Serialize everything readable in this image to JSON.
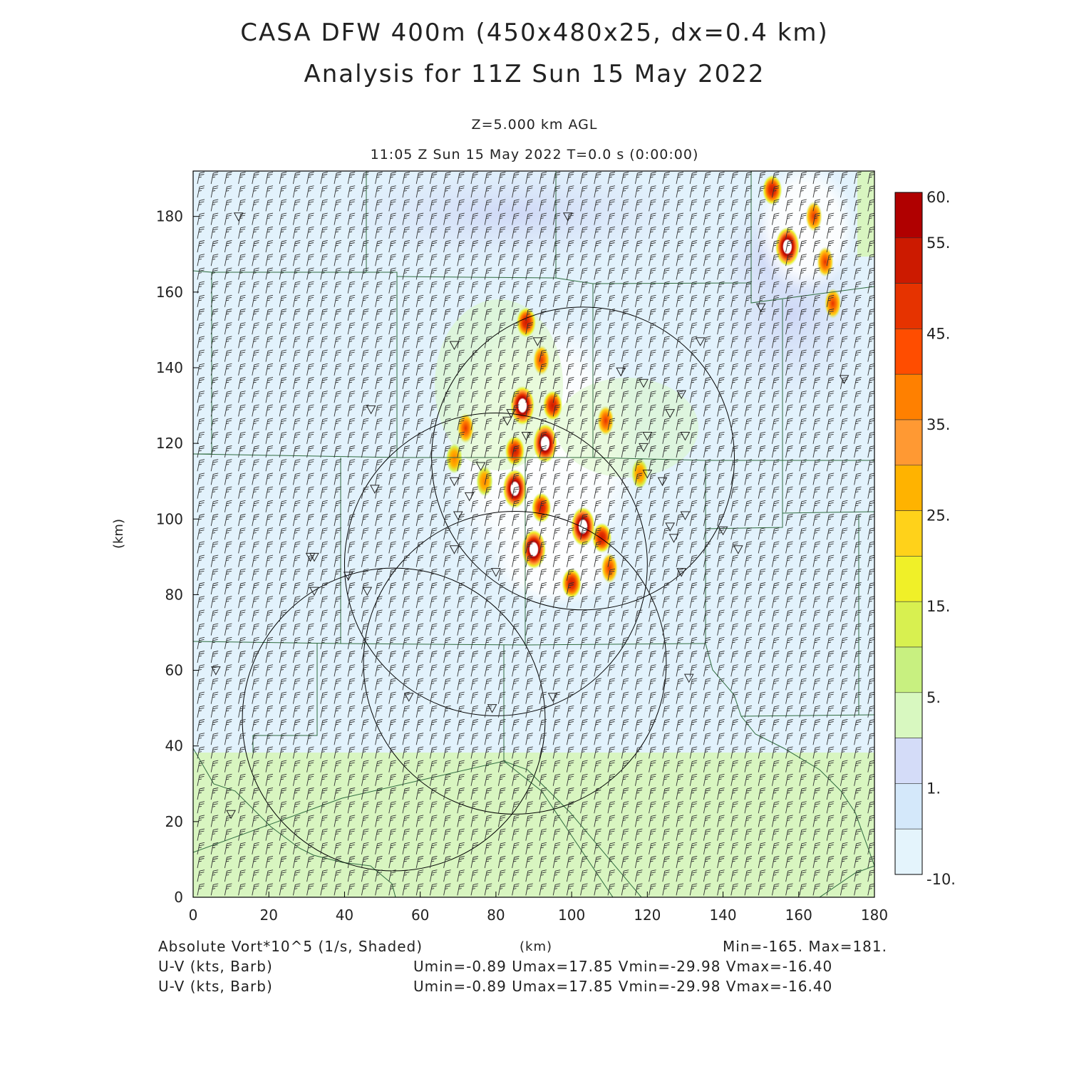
{
  "title": {
    "line1": "CASA DFW 400m (450x480x25, dx=0.4 km)",
    "line2": "Analysis for 11Z Sun 15 May 2022"
  },
  "subtitle": {
    "level": "Z=5.000 km AGL",
    "time": "11:05 Z Sun 15 May 2022    T=0.0 s (0:00:00)"
  },
  "axes": {
    "x_label": "(km)",
    "y_label": "(km)",
    "x_range": [
      0,
      180
    ],
    "y_range": [
      0,
      192
    ],
    "x_ticks": [
      "0",
      "20",
      "40",
      "60",
      "80",
      "100",
      "120",
      "140",
      "160",
      "180"
    ],
    "y_ticks": [
      "0",
      "20",
      "40",
      "60",
      "80",
      "100",
      "120",
      "140",
      "160",
      "180"
    ]
  },
  "colorbar": {
    "labels": [
      "60.",
      "55.",
      "45.",
      "35.",
      "25.",
      "15.",
      "5.",
      "1.",
      "-10."
    ],
    "colors": [
      "#b00000",
      "#cc1a00",
      "#e63300",
      "#ff4d00",
      "#ff8000",
      "#ff9933",
      "#ffb300",
      "#ffd21a",
      "#f0f028",
      "#d8f050",
      "#c8f080",
      "#d8f8c0",
      "#d4dcf8",
      "#d4e8fa",
      "#e4f4fc"
    ]
  },
  "footer": {
    "field": "Absolute Vort*10^5 (1/s, Shaded)",
    "xunit": "(km)",
    "minmax": "Min=-165. Max=181.",
    "barb1_label": "U-V (kts, Barb)",
    "barb1_stats": "Umin=-0.89 Umax=17.85 Vmin=-29.98 Vmax=-16.40",
    "barb2_label": "U-V (kts, Barb)",
    "barb2_stats": "Umin=-0.89 Umax=17.85 Vmin=-29.98 Vmax=-16.40"
  },
  "colors": {
    "background_field": "#e2f2fc",
    "southern_field": "#d8f5c0",
    "county_lines": "#2e6b3e",
    "radar_rings": "#000000"
  },
  "map_data": {
    "radar_rings_km": [
      {
        "cx": 103,
        "cy": 116,
        "r": 40
      },
      {
        "cx": 80,
        "cy": 88,
        "r": 40
      },
      {
        "cx": 53,
        "cy": 47,
        "r": 40
      },
      {
        "cx": 85,
        "cy": 62,
        "r": 40
      }
    ],
    "storm_cells_km": [
      {
        "x": 88,
        "y": 152,
        "v": 55
      },
      {
        "x": 92,
        "y": 142,
        "v": 40
      },
      {
        "x": 87,
        "y": 130,
        "v": 60
      },
      {
        "x": 95,
        "y": 130,
        "v": 50
      },
      {
        "x": 93,
        "y": 120,
        "v": 60
      },
      {
        "x": 85,
        "y": 118,
        "v": 50
      },
      {
        "x": 72,
        "y": 124,
        "v": 45
      },
      {
        "x": 85,
        "y": 108,
        "v": 60
      },
      {
        "x": 92,
        "y": 103,
        "v": 55
      },
      {
        "x": 103,
        "y": 98,
        "v": 60
      },
      {
        "x": 108,
        "y": 95,
        "v": 55
      },
      {
        "x": 90,
        "y": 92,
        "v": 60
      },
      {
        "x": 100,
        "y": 83,
        "v": 55
      },
      {
        "x": 110,
        "y": 87,
        "v": 40
      },
      {
        "x": 109,
        "y": 126,
        "v": 40
      },
      {
        "x": 118,
        "y": 112,
        "v": 35
      },
      {
        "x": 69,
        "y": 116,
        "v": 35
      },
      {
        "x": 77,
        "y": 110,
        "v": 30
      },
      {
        "x": 157,
        "y": 172,
        "v": 60
      },
      {
        "x": 164,
        "y": 180,
        "v": 45
      },
      {
        "x": 169,
        "y": 157,
        "v": 45
      },
      {
        "x": 153,
        "y": 187,
        "v": 55
      },
      {
        "x": 167,
        "y": 168,
        "v": 40
      }
    ],
    "stations_km": [
      [
        12,
        180
      ],
      [
        99,
        180
      ],
      [
        150,
        156
      ],
      [
        172,
        137
      ],
      [
        69,
        146
      ],
      [
        91,
        147
      ],
      [
        134,
        147
      ],
      [
        84,
        128
      ],
      [
        47,
        129
      ],
      [
        113,
        139
      ],
      [
        119,
        136
      ],
      [
        129,
        133
      ],
      [
        126,
        128
      ],
      [
        83,
        126
      ],
      [
        88,
        122
      ],
      [
        120,
        122
      ],
      [
        119,
        119
      ],
      [
        130,
        122
      ],
      [
        76,
        114
      ],
      [
        69,
        110
      ],
      [
        48,
        108
      ],
      [
        120,
        112
      ],
      [
        124,
        110
      ],
      [
        73,
        106
      ],
      [
        70,
        101
      ],
      [
        130,
        101
      ],
      [
        126,
        98
      ],
      [
        127,
        95
      ],
      [
        140,
        97
      ],
      [
        144,
        92
      ],
      [
        69,
        92
      ],
      [
        31,
        90
      ],
      [
        32,
        90
      ],
      [
        80,
        86
      ],
      [
        129,
        86
      ],
      [
        41,
        85
      ],
      [
        46,
        81
      ],
      [
        32,
        81
      ],
      [
        6,
        60
      ],
      [
        131,
        58
      ],
      [
        57,
        53
      ],
      [
        95,
        53
      ],
      [
        79,
        50
      ],
      [
        10,
        22
      ]
    ]
  }
}
